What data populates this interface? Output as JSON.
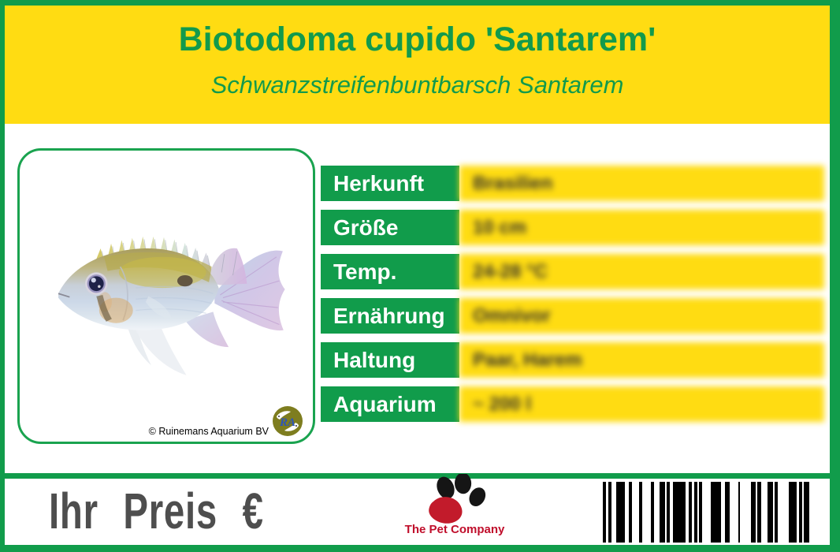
{
  "colors": {
    "frame_green": "#119C4B",
    "header_yellow": "#FFDC12",
    "title_green": "#129A4C",
    "label_text_white": "#FFFFFF",
    "price_gray": "#4E4E4E",
    "brand_red": "#C00E2B",
    "barcode_black": "#000000"
  },
  "header": {
    "title": "Biotodoma cupido 'Santarem'",
    "subtitle": "Schwanzstreifenbuntbarsch Santarem"
  },
  "photo": {
    "subject": "Biotodoma cupido fish, silver-blue cichlid with yellow back and iridescent fins",
    "credit": "© Ruinemans Aquarium BV",
    "logo_monogram": "RA"
  },
  "info_table": {
    "rows": [
      {
        "label": "Herkunft",
        "value": "Brasilien"
      },
      {
        "label": "Größe",
        "value": "10 cm"
      },
      {
        "label": "Temp.",
        "value": "24-28 °C"
      },
      {
        "label": "Ernährung",
        "value": "Omnivor"
      },
      {
        "label": "Haltung",
        "value": "Paar, Harem"
      },
      {
        "label": "Aquarium",
        "value": "~ 200 l"
      }
    ],
    "values_blurred": true
  },
  "footer": {
    "price_label": "Ihr Preis €",
    "brand": "The Pet Company",
    "barcode_pattern": [
      2,
      1,
      2,
      3,
      5,
      2,
      2,
      4,
      2,
      5,
      2,
      3,
      3,
      1,
      2,
      2,
      7,
      2,
      2,
      1,
      2,
      1,
      2,
      5,
      6,
      2,
      3,
      5,
      1,
      6,
      3,
      1,
      2,
      4,
      3,
      1,
      2,
      6,
      5,
      1,
      2,
      1,
      3
    ]
  }
}
